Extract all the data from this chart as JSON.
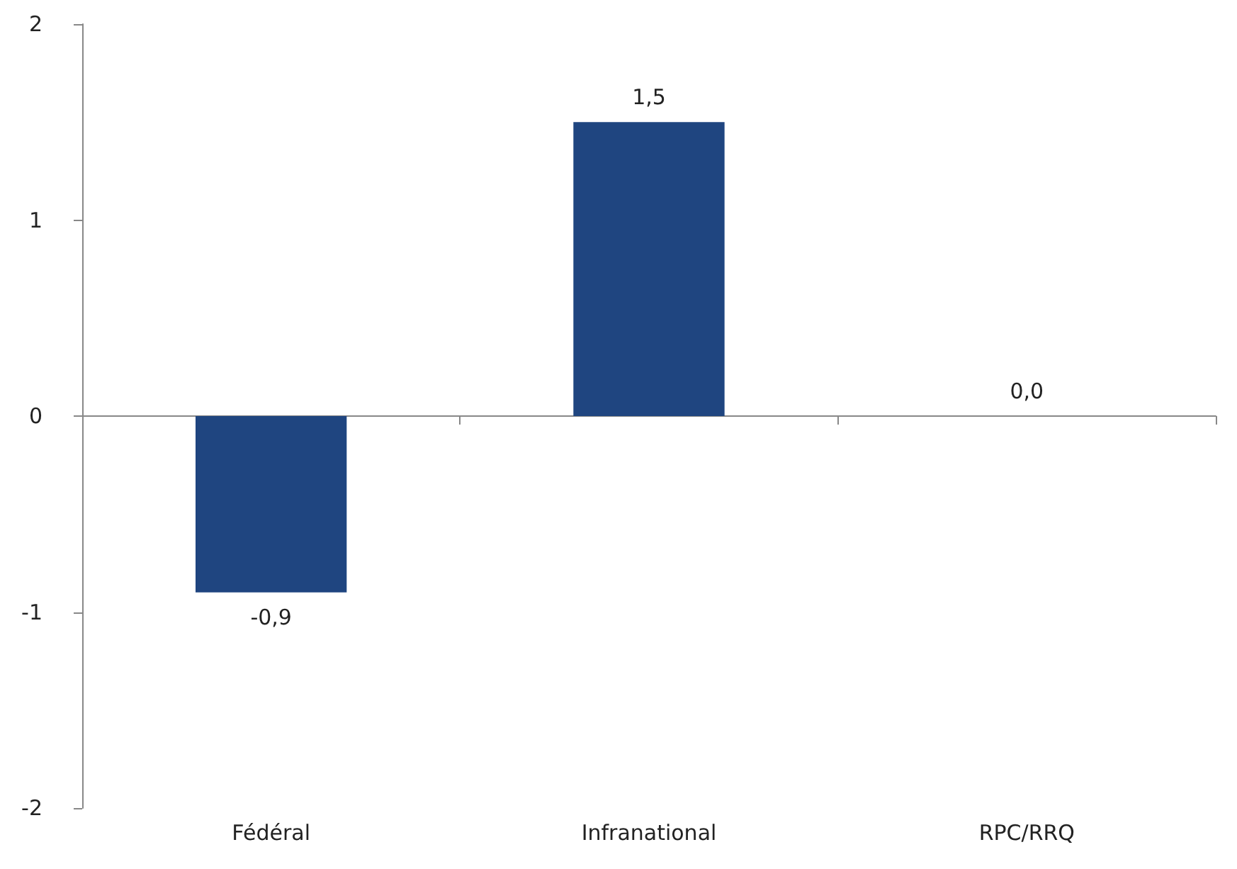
{
  "chart_data": {
    "type": "bar",
    "categories": [
      "Fédéral",
      "Infranational",
      "RPC/RRQ"
    ],
    "values": [
      -0.9,
      1.5,
      0
    ],
    "value_labels": [
      "-0,9",
      "1,5",
      "0,0"
    ],
    "color": "#1f4580",
    "ylim": [
      -2,
      2
    ],
    "yticks": [
      -2,
      -1,
      0,
      1,
      2
    ]
  }
}
